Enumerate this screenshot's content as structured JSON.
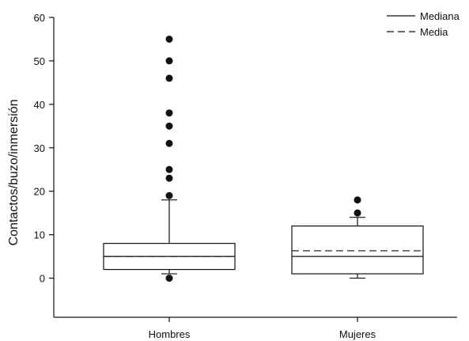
{
  "chart_data": {
    "type": "box",
    "ylabel": "Contactos/buzo/inmersión",
    "xlabel": "",
    "ylim": [
      -9,
      60
    ],
    "yticks": [
      0,
      10,
      20,
      30,
      40,
      50,
      60
    ],
    "categories": [
      "Hombres",
      "Mujeres"
    ],
    "legend": {
      "position": "top-right",
      "entries": [
        {
          "label": "Mediana",
          "style": "solid"
        },
        {
          "label": "Media",
          "style": "dashed"
        }
      ]
    },
    "groups": [
      {
        "name": "Hombres",
        "whisker_low": 1,
        "q1": 2,
        "median": 5,
        "mean": 5,
        "q3": 8,
        "whisker_high": 18,
        "outliers": [
          0,
          19,
          23,
          25,
          31,
          35,
          38,
          46,
          50,
          55
        ]
      },
      {
        "name": "Mujeres",
        "whisker_low": 0,
        "q1": 1,
        "median": 5,
        "mean": 6.3,
        "q3": 12,
        "whisker_high": 14,
        "outliers": [
          15,
          18
        ]
      }
    ],
    "colors": {
      "ink": "#111111",
      "background": "#ffffff"
    }
  }
}
